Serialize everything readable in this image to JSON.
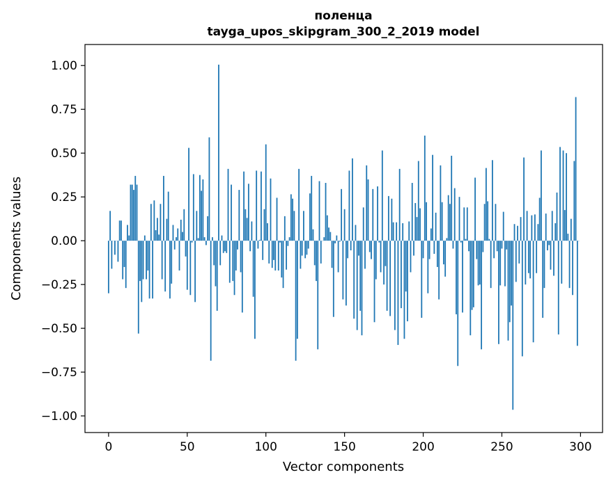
{
  "chart_data": {
    "type": "bar",
    "title": [
      "поленца",
      "tayga_upos_skipgram_300_2_2019 model"
    ],
    "xlabel": "Vector components",
    "ylabel": "Components values",
    "xlim": [
      -15,
      314
    ],
    "ylim": [
      -1.095,
      1.12
    ],
    "xticks": [
      0,
      50,
      100,
      150,
      200,
      250,
      300
    ],
    "xtick_labels": [
      "0",
      "50",
      "100",
      "150",
      "200",
      "250",
      "300"
    ],
    "yticks": [
      1.0,
      0.75,
      0.5,
      0.25,
      0.0,
      -0.25,
      -0.5,
      -0.75,
      -1.0
    ],
    "ytick_labels": [
      "1.00",
      "0.75",
      "0.50",
      "0.25",
      "0.00",
      "−0.25",
      "−0.50",
      "−0.75",
      "−1.00"
    ],
    "grid": false,
    "color": "#1f77b4",
    "values": [
      -0.3,
      0.17,
      -0.16,
      0.0,
      -0.08,
      0.0,
      -0.12,
      0.115,
      0.115,
      -0.22,
      -0.15,
      -0.27,
      0.09,
      0.03,
      0.32,
      0.32,
      0.29,
      0.37,
      0.32,
      -0.53,
      -0.23,
      -0.35,
      -0.22,
      0.03,
      -0.22,
      -0.17,
      -0.33,
      0.21,
      -0.33,
      0.23,
      0.06,
      0.13,
      0.035,
      0.21,
      -0.22,
      0.37,
      -0.29,
      0.125,
      0.28,
      -0.33,
      -0.245,
      0.09,
      -0.05,
      0.02,
      0.07,
      -0.17,
      0.12,
      0.05,
      0.18,
      -0.09,
      -0.28,
      0.53,
      -0.31,
      -0.01,
      0.38,
      -0.35,
      0.17,
      0.015,
      0.375,
      0.285,
      0.35,
      0.02,
      -0.025,
      0.14,
      0.59,
      -0.685,
      0.02,
      -0.14,
      -0.26,
      -0.4,
      1.005,
      -0.14,
      0.03,
      -0.07,
      -0.06,
      -0.07,
      0.41,
      -0.24,
      0.32,
      -0.23,
      -0.31,
      -0.17,
      -0.05,
      0.29,
      -0.18,
      -0.41,
      0.395,
      0.18,
      0.13,
      0.325,
      -0.06,
      0.11,
      -0.32,
      -0.56,
      0.4,
      -0.045,
      0.005,
      0.395,
      -0.11,
      0.18,
      0.55,
      0.1,
      -0.13,
      0.355,
      -0.155,
      -0.11,
      -0.17,
      0.245,
      -0.17,
      -0.01,
      -0.21,
      -0.27,
      0.14,
      -0.165,
      -0.03,
      0.02,
      0.265,
      0.24,
      0.17,
      -0.685,
      -0.56,
      0.41,
      -0.16,
      -0.085,
      0.17,
      -0.1,
      -0.08,
      -0.045,
      0.27,
      0.37,
      0.065,
      -0.14,
      -0.23,
      -0.62,
      0.34,
      -0.13,
      0.0,
      0.02,
      0.33,
      0.145,
      0.075,
      0.05,
      -0.155,
      -0.435,
      -0.015,
      0.03,
      -0.18,
      -0.005,
      0.295,
      -0.335,
      0.18,
      -0.37,
      -0.1,
      0.4,
      -0.055,
      0.47,
      -0.445,
      0.09,
      -0.51,
      -0.085,
      -0.4,
      -0.54,
      0.19,
      -0.16,
      0.43,
      0.35,
      -0.065,
      -0.105,
      0.295,
      -0.465,
      -0.22,
      0.31,
      -0.01,
      -0.18,
      0.515,
      -0.25,
      -0.145,
      -0.4,
      0.255,
      -0.43,
      0.24,
      0.105,
      -0.51,
      0.105,
      -0.595,
      0.41,
      -0.385,
      0.1,
      -0.56,
      -0.29,
      -0.46,
      0.11,
      -0.18,
      0.33,
      -0.085,
      0.215,
      0.135,
      0.455,
      0.185,
      -0.44,
      -0.1,
      0.6,
      0.22,
      -0.3,
      -0.105,
      0.07,
      0.49,
      -0.075,
      0.16,
      -0.15,
      -0.335,
      0.43,
      0.22,
      -0.135,
      -0.205,
      0.015,
      0.26,
      0.21,
      0.485,
      -0.045,
      0.3,
      -0.42,
      -0.715,
      0.25,
      -0.01,
      -0.41,
      0.19,
      0.01,
      0.19,
      -0.06,
      -0.54,
      -0.395,
      -0.38,
      0.36,
      -0.105,
      -0.255,
      -0.25,
      -0.62,
      -0.065,
      0.21,
      0.415,
      0.225,
      0.01,
      -0.27,
      0.46,
      -0.1,
      0.21,
      -0.06,
      -0.59,
      -0.255,
      -0.045,
      0.165,
      -0.26,
      -0.05,
      -0.57,
      -0.465,
      -0.37,
      -0.965,
      0.095,
      -0.235,
      0.085,
      -0.13,
      0.135,
      -0.66,
      0.475,
      -0.25,
      0.17,
      -0.185,
      -0.215,
      0.145,
      -0.58,
      0.15,
      -0.185,
      0.095,
      0.245,
      0.515,
      -0.44,
      -0.27,
      0.155,
      -0.055,
      -0.025,
      -0.165,
      0.17,
      -0.2,
      0.1,
      0.275,
      -0.535,
      0.535,
      -0.245,
      0.515,
      0.175,
      0.5,
      0.04,
      -0.27,
      0.125,
      -0.31,
      0.455,
      0.82,
      -0.6,
      0.0
    ]
  }
}
